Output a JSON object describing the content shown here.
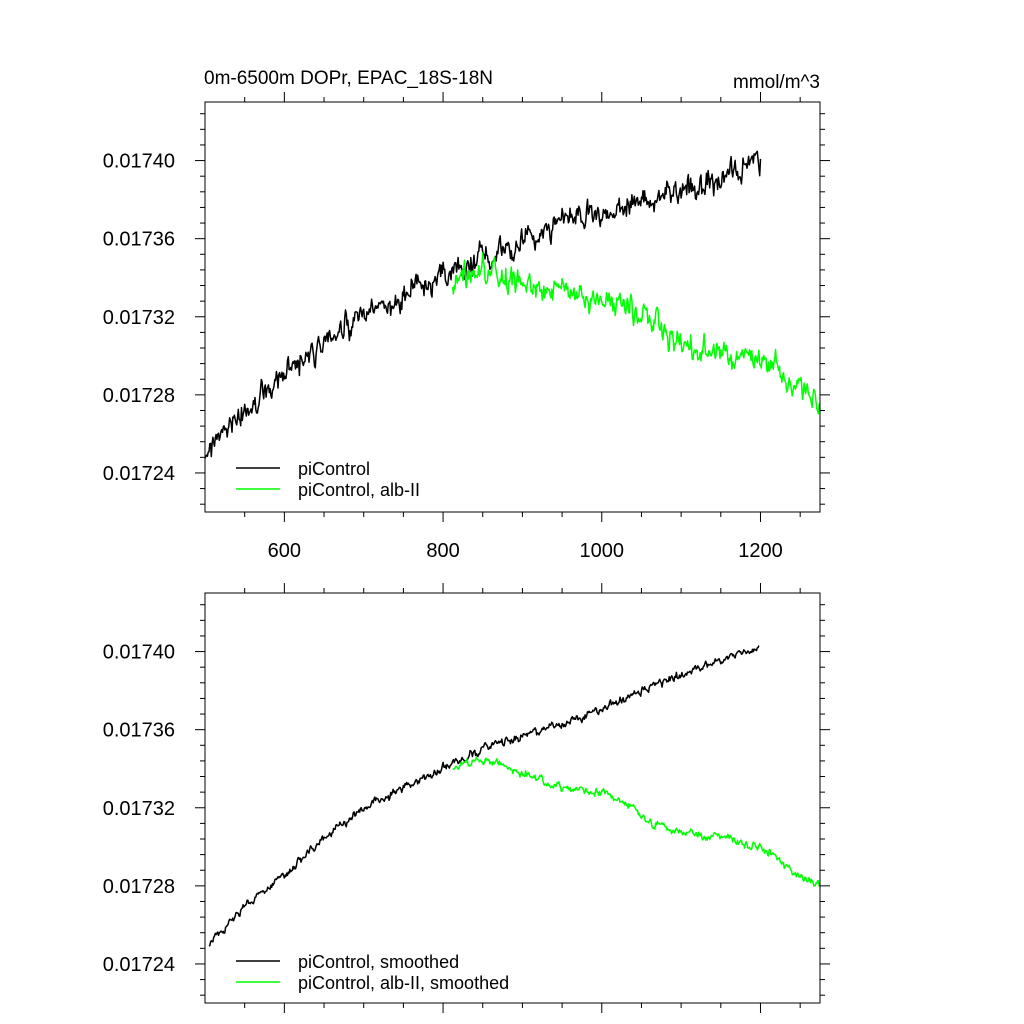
{
  "colors": {
    "background": "#ffffff",
    "axis": "#000000",
    "picontrol": "#000000",
    "albII": "#00ff00"
  },
  "chart_data": [
    {
      "type": "line",
      "title": "0m-6500m DOPr, EPAC_18S-18N",
      "units": "mmol/m^3",
      "xlabel": "",
      "ylabel": "",
      "xlim": [
        500,
        1275
      ],
      "ylim": [
        0.01722,
        0.01743
      ],
      "xticks": [
        600,
        800,
        1000,
        1200
      ],
      "xtick_labels": [
        "600",
        "800",
        "1000",
        "1200"
      ],
      "yticks": [
        0.01724,
        0.01728,
        0.01732,
        0.01736,
        0.0174
      ],
      "ytick_labels": [
        "0.01724",
        "0.01728",
        "0.01732",
        "0.01736",
        "0.01740"
      ],
      "legend_position": "bottom-left",
      "series": [
        {
          "name": "piControl",
          "color": "#000000",
          "noise": 1.1e-05,
          "x": [
            500,
            550,
            600,
            650,
            700,
            750,
            800,
            850,
            900,
            950,
            1000,
            1050,
            1100,
            1150,
            1200
          ],
          "values": [
            0.01725,
            0.01727,
            0.01729,
            0.017305,
            0.01732,
            0.01733,
            0.01734,
            0.01735,
            0.01736,
            0.01737,
            0.01737,
            0.01738,
            0.017385,
            0.01739,
            0.0174
          ]
        },
        {
          "name": "piControl, alb-II",
          "color": "#00ff00",
          "noise": 1.1e-05,
          "x": [
            812,
            850,
            900,
            950,
            1000,
            1050,
            1100,
            1150,
            1200,
            1250,
            1275
          ],
          "values": [
            0.01734,
            0.017345,
            0.017338,
            0.017333,
            0.017329,
            0.017322,
            0.017305,
            0.0173,
            0.0173,
            0.017285,
            0.017275
          ]
        }
      ]
    },
    {
      "type": "line",
      "title": "",
      "xlabel": "",
      "ylabel": "",
      "xlim": [
        500,
        1275
      ],
      "ylim": [
        0.01722,
        0.01743
      ],
      "xticks": [
        600,
        800,
        1000,
        1200
      ],
      "xtick_labels": [],
      "yticks": [
        0.01724,
        0.01728,
        0.01732,
        0.01736,
        0.0174
      ],
      "ytick_labels": [
        "0.01724",
        "0.01728",
        "0.01732",
        "0.01736",
        "0.01740"
      ],
      "legend_position": "bottom-left",
      "series": [
        {
          "name": "piControl, smoothed",
          "color": "#000000",
          "noise": 3.5e-06,
          "x": [
            505,
            550,
            600,
            650,
            700,
            750,
            800,
            850,
            900,
            950,
            1000,
            1050,
            1100,
            1150,
            1198
          ],
          "values": [
            0.017249,
            0.01727,
            0.017285,
            0.017305,
            0.01732,
            0.01733,
            0.01734,
            0.01735,
            0.017357,
            0.017363,
            0.01737,
            0.01738,
            0.017388,
            0.017395,
            0.017402
          ]
        },
        {
          "name": "piControl, alb-II, smoothed",
          "color": "#00ff00",
          "noise": 3.5e-06,
          "x": [
            812,
            850,
            900,
            950,
            1000,
            1030,
            1050,
            1100,
            1150,
            1200,
            1250,
            1275
          ],
          "values": [
            0.01734,
            0.017345,
            0.017338,
            0.01733,
            0.017328,
            0.017322,
            0.017315,
            0.017307,
            0.017305,
            0.0173,
            0.017285,
            0.01728
          ]
        }
      ]
    }
  ]
}
